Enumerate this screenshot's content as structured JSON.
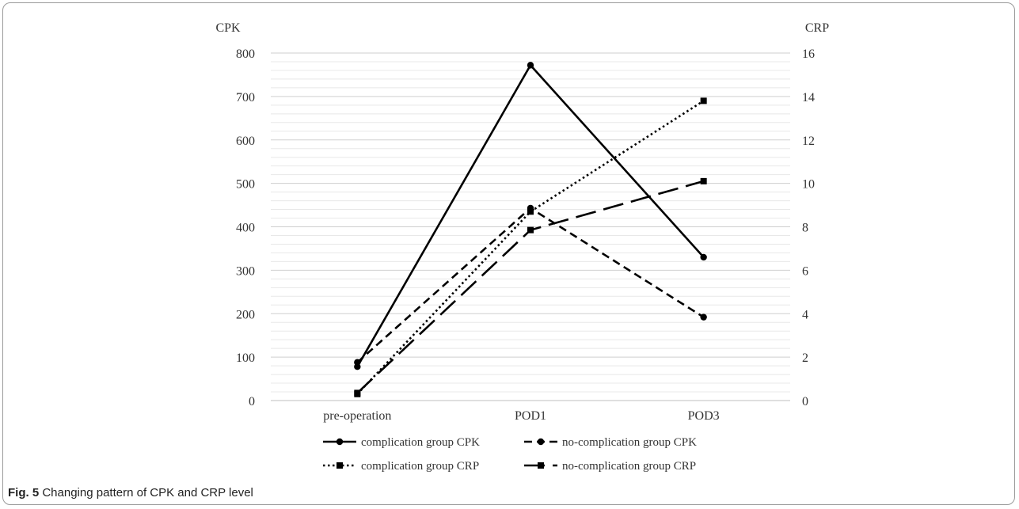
{
  "caption": {
    "label": "Fig. 5",
    "text": "Changing pattern of CPK and CRP level"
  },
  "chart_data": {
    "type": "line",
    "categories": [
      "pre-operation",
      "POD1",
      "POD3"
    ],
    "y_left": {
      "label": "CPK",
      "range": [
        0,
        800
      ],
      "ticks": [
        "0",
        "100",
        "200",
        "300",
        "400",
        "500",
        "600",
        "700",
        "800"
      ]
    },
    "y_right": {
      "label": "CRP",
      "range": [
        0,
        16
      ],
      "ticks": [
        "0",
        "2",
        "4",
        "6",
        "8",
        "10",
        "12",
        "14",
        "16"
      ]
    },
    "grid": true,
    "legend_position": "bottom",
    "series": [
      {
        "name": "complication group CPK",
        "axis": "left",
        "values": [
          78,
          772,
          330
        ],
        "dash": "solid",
        "marker": "circle"
      },
      {
        "name": "no-complication group CPK",
        "axis": "left",
        "values": [
          88,
          443,
          192
        ],
        "dash": "short-dash",
        "marker": "circle"
      },
      {
        "name": "complication group CRP",
        "axis": "right",
        "values": [
          0.3,
          8.7,
          13.8
        ],
        "dash": "dotted",
        "marker": "square"
      },
      {
        "name": "no-complication group CRP",
        "axis": "right",
        "values": [
          0.35,
          7.85,
          10.1
        ],
        "dash": "long-dash",
        "marker": "square"
      }
    ],
    "colors": {
      "line": "#000000",
      "grid": "#d9d9d9"
    }
  }
}
